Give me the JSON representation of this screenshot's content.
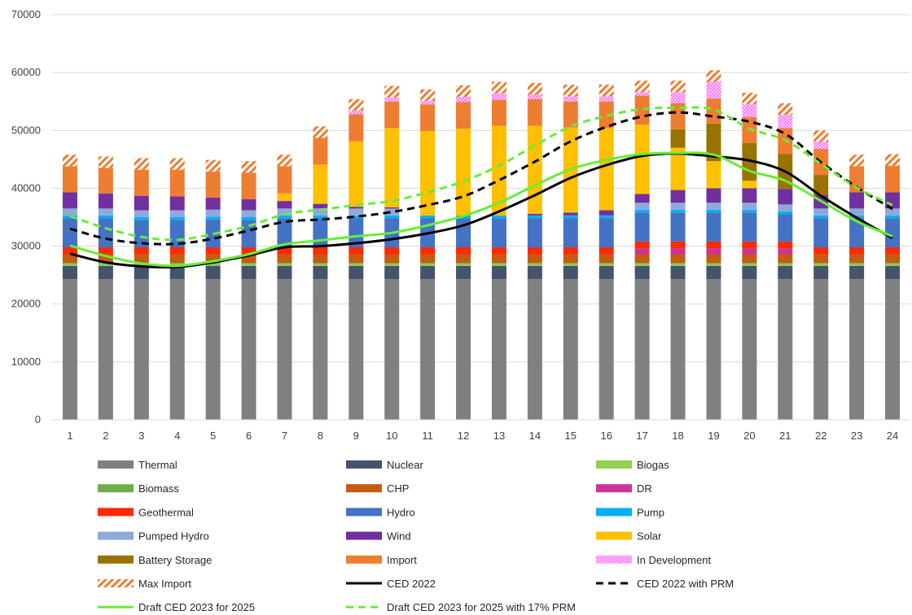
{
  "chart_data": {
    "type": "bar",
    "stacked": true,
    "title": "",
    "xlabel": "",
    "ylabel": "",
    "ylim": [
      0,
      70000
    ],
    "yticks": [
      0,
      10000,
      20000,
      30000,
      40000,
      50000,
      60000,
      70000
    ],
    "ytick_labels": [
      "0",
      "10000",
      "20000",
      "30000",
      "40000",
      "50000",
      "60000",
      "70000"
    ],
    "grid": "horizontal",
    "legend_position": "bottom",
    "categories": [
      "1",
      "2",
      "3",
      "4",
      "5",
      "6",
      "7",
      "8",
      "9",
      "10",
      "11",
      "12",
      "13",
      "14",
      "15",
      "16",
      "17",
      "18",
      "19",
      "20",
      "21",
      "22",
      "23",
      "24"
    ],
    "series": [
      {
        "name": "Thermal",
        "kind": "bar",
        "color": "#808080",
        "values": [
          24300,
          24300,
          24300,
          24300,
          24300,
          24300,
          24300,
          24300,
          24300,
          24300,
          24300,
          24300,
          24300,
          24300,
          24300,
          24300,
          24300,
          24300,
          24300,
          24300,
          24300,
          24300,
          24300,
          24300
        ]
      },
      {
        "name": "Nuclear",
        "kind": "bar",
        "color": "#44546a",
        "values": [
          2300,
          2300,
          2300,
          2300,
          2300,
          2300,
          2300,
          2300,
          2300,
          2300,
          2300,
          2300,
          2300,
          2300,
          2300,
          2300,
          2300,
          2300,
          2300,
          2300,
          2300,
          2300,
          2300,
          2300
        ]
      },
      {
        "name": "Biogas",
        "kind": "bar",
        "color": "#92d050",
        "values": [
          300,
          300,
          300,
          300,
          300,
          300,
          300,
          300,
          300,
          300,
          300,
          300,
          300,
          300,
          300,
          300,
          300,
          300,
          300,
          300,
          300,
          300,
          300,
          300
        ]
      },
      {
        "name": "Biomass",
        "kind": "bar",
        "color": "#70ad47",
        "values": [
          200,
          200,
          200,
          200,
          200,
          200,
          200,
          200,
          200,
          200,
          200,
          200,
          200,
          200,
          200,
          200,
          200,
          200,
          200,
          200,
          200,
          200,
          200,
          200
        ]
      },
      {
        "name": "CHP",
        "kind": "bar",
        "color": "#c55a11",
        "values": [
          1500,
          1500,
          1500,
          1500,
          1500,
          1500,
          1500,
          1500,
          1500,
          1500,
          1500,
          1500,
          1500,
          1500,
          1500,
          1500,
          1500,
          1500,
          1500,
          1500,
          1500,
          1500,
          1500,
          1500
        ]
      },
      {
        "name": "DR",
        "kind": "bar",
        "color": "#cc3399",
        "values": [
          0,
          0,
          0,
          0,
          0,
          0,
          0,
          0,
          0,
          0,
          0,
          0,
          0,
          0,
          0,
          0,
          1000,
          1000,
          1000,
          1000,
          1000,
          0,
          0,
          0
        ]
      },
      {
        "name": "Geothermal",
        "kind": "bar",
        "color": "#ff2a00",
        "values": [
          1200,
          1200,
          1200,
          1200,
          1200,
          1200,
          1200,
          1200,
          1200,
          1200,
          1200,
          1200,
          1200,
          1200,
          1200,
          1200,
          1200,
          1200,
          1200,
          1200,
          1200,
          1200,
          1200,
          1200
        ]
      },
      {
        "name": "Hydro",
        "kind": "bar",
        "color": "#4472c4",
        "values": [
          5000,
          5000,
          4700,
          4700,
          4800,
          4700,
          5000,
          5000,
          5000,
          5000,
          5000,
          5000,
          5000,
          5000,
          5000,
          5000,
          5000,
          5000,
          5000,
          5000,
          4700,
          5000,
          5000,
          5000
        ]
      },
      {
        "name": "Pump",
        "kind": "bar",
        "color": "#00b0f0",
        "values": [
          500,
          500,
          500,
          500,
          500,
          500,
          500,
          500,
          500,
          500,
          500,
          500,
          500,
          500,
          500,
          500,
          500,
          500,
          500,
          500,
          500,
          500,
          500,
          500
        ]
      },
      {
        "name": "Pumped Hydro",
        "kind": "bar",
        "color": "#8eaadb",
        "values": [
          1200,
          1200,
          1200,
          1200,
          1200,
          1200,
          1200,
          1200,
          1200,
          1200,
          0,
          0,
          0,
          0,
          0,
          0,
          1200,
          1200,
          1200,
          1200,
          1200,
          1200,
          1200,
          1200
        ]
      },
      {
        "name": "Wind",
        "kind": "bar",
        "color": "#7030a0",
        "values": [
          2800,
          2600,
          2500,
          2400,
          2100,
          1900,
          1300,
          800,
          300,
          200,
          0,
          0,
          0,
          300,
          500,
          900,
          1500,
          2200,
          2500,
          2500,
          2700,
          2300,
          2800,
          2800
        ]
      },
      {
        "name": "Solar",
        "kind": "bar",
        "color": "#ffc000",
        "values": [
          0,
          0,
          0,
          0,
          0,
          0,
          1300,
          6800,
          11300,
          13700,
          14600,
          15000,
          15500,
          15200,
          14700,
          14200,
          12000,
          7300,
          4700,
          1300,
          0,
          0,
          0,
          0
        ]
      },
      {
        "name": "Battery Storage",
        "kind": "bar",
        "color": "#997300",
        "values": [
          0,
          0,
          0,
          0,
          0,
          0,
          0,
          0,
          0,
          0,
          0,
          0,
          0,
          0,
          0,
          0,
          0,
          3200,
          6500,
          6500,
          6000,
          3500,
          0,
          0
        ]
      },
      {
        "name": "Import",
        "kind": "bar",
        "color": "#ed7d31",
        "values": [
          4500,
          4400,
          4500,
          4600,
          4500,
          4600,
          4700,
          4600,
          4700,
          4600,
          4600,
          4600,
          4500,
          4600,
          4500,
          4600,
          5000,
          4500,
          4300,
          4500,
          4500,
          4500,
          4500,
          4600
        ]
      },
      {
        "name": "In Development",
        "kind": "bar",
        "color": "#ff99ff",
        "pattern": "dots",
        "values": [
          0,
          0,
          0,
          0,
          0,
          0,
          0,
          0,
          600,
          700,
          600,
          900,
          1100,
          800,
          900,
          900,
          600,
          1900,
          2900,
          2200,
          2300,
          1200,
          0,
          0
        ]
      },
      {
        "name": "Max Import",
        "kind": "bar",
        "color": "#ed7d31",
        "pattern": "stripes",
        "values": [
          2000,
          2000,
          2000,
          2000,
          2000,
          2000,
          2000,
          2000,
          2000,
          2000,
          2000,
          2000,
          2000,
          2000,
          2000,
          2000,
          2000,
          2000,
          2000,
          2000,
          2000,
          2000,
          2000,
          2000
        ]
      },
      {
        "name": "CED 2022",
        "kind": "line",
        "color": "#000000",
        "dash": "solid",
        "values": [
          28700,
          27200,
          26500,
          26400,
          27200,
          28400,
          29800,
          30000,
          30500,
          31200,
          32200,
          33600,
          36000,
          38800,
          41800,
          44000,
          45600,
          46000,
          45500,
          44800,
          42900,
          38700,
          34900,
          31400
        ]
      },
      {
        "name": "CED 2022 with PRM",
        "kind": "line",
        "color": "#000000",
        "dash": "dashed",
        "values": [
          33000,
          31300,
          30500,
          30400,
          31300,
          32700,
          34200,
          34600,
          35100,
          35900,
          37100,
          38600,
          41400,
          44600,
          48100,
          50600,
          52400,
          53100,
          52400,
          51500,
          49400,
          44500,
          40200,
          36400
        ]
      },
      {
        "name": "Draft CED 2023 for 2025",
        "kind": "line",
        "color": "#66ee33",
        "dash": "solid",
        "values": [
          30100,
          28300,
          27000,
          26600,
          27400,
          28600,
          30300,
          31000,
          31700,
          32300,
          33600,
          35200,
          37500,
          40500,
          43300,
          44900,
          45900,
          46100,
          45800,
          43000,
          41300,
          37800,
          34300,
          31700
        ]
      },
      {
        "name": "Draft CED 2023 for 2025 with 17% PRM",
        "kind": "line",
        "color": "#66ee33",
        "dash": "dashed",
        "values": [
          35200,
          33100,
          31600,
          31100,
          32100,
          33500,
          35500,
          36300,
          37100,
          37800,
          39300,
          41200,
          43900,
          47400,
          50700,
          52500,
          53700,
          53900,
          53600,
          50300,
          48300,
          44200,
          40100,
          37100
        ]
      }
    ]
  }
}
